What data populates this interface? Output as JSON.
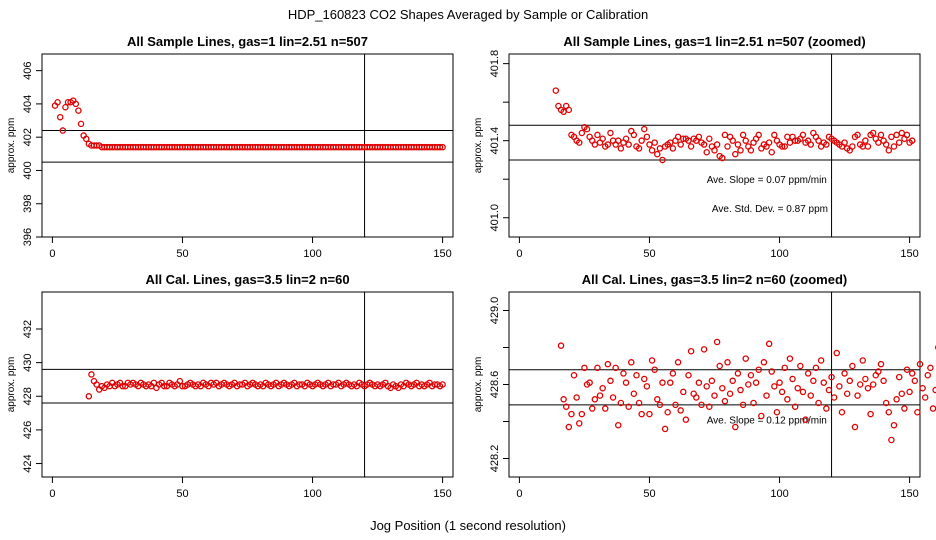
{
  "figure_title": "HDP_160823  CO2 Shapes Averaged by Sample or Calibration",
  "x_axis_label": "Jog Position (1 second resolution)",
  "point_color": "#e00000",
  "chart_data": [
    {
      "type": "scatter",
      "title": "All Sample Lines, gas=1 lin=2.51 n=507",
      "ylabel": "approx. ppm",
      "xlim": [
        -4,
        154
      ],
      "ylim": [
        396,
        407
      ],
      "xticks": [
        0,
        50,
        100,
        150
      ],
      "yticks": [
        396,
        398,
        400,
        402,
        404,
        406
      ],
      "hlines": [
        402.4,
        400.5
      ],
      "vlines": [
        120
      ],
      "annotations": [],
      "x_start": 1,
      "values": [
        403.9,
        404.1,
        403.2,
        402.4,
        403.8,
        404.1,
        404.1,
        404.2,
        404.0,
        403.6,
        402.8,
        402.1,
        401.9,
        401.6,
        401.5,
        401.5,
        401.5,
        401.5,
        401.4,
        401.4,
        401.4,
        401.4,
        401.4,
        401.4,
        401.4,
        401.4,
        401.4,
        401.4,
        401.4,
        401.4,
        401.4,
        401.4,
        401.4,
        401.4,
        401.4,
        401.4,
        401.4,
        401.4,
        401.4,
        401.4,
        401.4,
        401.4,
        401.4,
        401.4,
        401.4,
        401.4,
        401.4,
        401.4,
        401.4,
        401.4,
        401.4,
        401.4,
        401.4,
        401.4,
        401.4,
        401.4,
        401.4,
        401.4,
        401.4,
        401.4,
        401.4,
        401.4,
        401.4,
        401.4,
        401.4,
        401.4,
        401.4,
        401.4,
        401.4,
        401.4,
        401.4,
        401.4,
        401.4,
        401.4,
        401.4,
        401.4,
        401.4,
        401.4,
        401.4,
        401.4,
        401.4,
        401.4,
        401.4,
        401.4,
        401.4,
        401.4,
        401.4,
        401.4,
        401.4,
        401.4,
        401.4,
        401.4,
        401.4,
        401.4,
        401.4,
        401.4,
        401.4,
        401.4,
        401.4,
        401.4,
        401.4,
        401.4,
        401.4,
        401.4,
        401.4,
        401.4,
        401.4,
        401.4,
        401.4,
        401.4,
        401.4,
        401.4,
        401.4,
        401.4,
        401.4,
        401.4,
        401.4,
        401.4,
        401.4,
        401.4,
        401.4,
        401.4,
        401.4,
        401.4,
        401.4,
        401.4,
        401.4,
        401.4,
        401.4,
        401.4,
        401.4,
        401.4,
        401.4,
        401.4,
        401.4,
        401.4,
        401.4,
        401.4,
        401.4,
        401.4,
        401.4,
        401.4,
        401.4,
        401.4,
        401.4,
        401.4,
        401.4,
        401.4,
        401.4,
        401.4
      ]
    },
    {
      "type": "scatter",
      "title": "All Sample Lines, gas=1 lin=2.51 n=507 (zoomed)",
      "ylabel": "approx. ppm",
      "xlim": [
        -4,
        154
      ],
      "ylim": [
        400.9,
        401.85
      ],
      "xticks": [
        0,
        50,
        100,
        150
      ],
      "yticks": [
        401.0,
        401.2,
        401.4,
        401.6,
        401.8
      ],
      "ytick_labels": [
        "401.0",
        "",
        "401.4",
        "",
        "401.8"
      ],
      "hlines": [
        401.48,
        401.3
      ],
      "vlines": [
        120
      ],
      "annotations": [
        {
          "text": "Ave. Slope =  0.07  ppm/min",
          "x": 72,
          "y": 401.18
        },
        {
          "text": "Ave. Std. Dev. =  0.87  ppm",
          "x": 74,
          "y": 401.03
        }
      ],
      "x_start": 14,
      "values": [
        401.66,
        401.58,
        401.56,
        401.55,
        401.58,
        401.56,
        401.43,
        401.42,
        401.4,
        401.39,
        401.44,
        401.47,
        401.46,
        401.42,
        401.4,
        401.38,
        401.43,
        401.39,
        401.41,
        401.37,
        401.38,
        401.44,
        401.4,
        401.38,
        401.4,
        401.36,
        401.39,
        401.41,
        401.38,
        401.45,
        401.43,
        401.37,
        401.36,
        401.4,
        401.46,
        401.42,
        401.38,
        401.35,
        401.39,
        401.33,
        401.36,
        401.3,
        401.37,
        401.38,
        401.39,
        401.36,
        401.4,
        401.42,
        401.38,
        401.41,
        401.41,
        401.4,
        401.37,
        401.41,
        401.4,
        401.42,
        401.39,
        401.38,
        401.34,
        401.41,
        401.37,
        401.35,
        401.38,
        401.32,
        401.31,
        401.43,
        401.37,
        401.42,
        401.4,
        401.33,
        401.38,
        401.35,
        401.43,
        401.4,
        401.37,
        401.35,
        401.39,
        401.41,
        401.43,
        401.36,
        401.38,
        401.37,
        401.39,
        401.34,
        401.43,
        401.4,
        401.38,
        401.37,
        401.37,
        401.42,
        401.39,
        401.42,
        401.4,
        401.4,
        401.41,
        401.43,
        401.39,
        401.4,
        401.38,
        401.44,
        401.42,
        401.4,
        401.37,
        401.39,
        401.38,
        401.42,
        401.41,
        401.4,
        401.39,
        401.38,
        401.37,
        401.39,
        401.36,
        401.35,
        401.37,
        401.42,
        401.43,
        401.38,
        401.37,
        401.4,
        401.37,
        401.43,
        401.44,
        401.41,
        401.39,
        401.43,
        401.4,
        401.38,
        401.35,
        401.42,
        401.37,
        401.43,
        401.39,
        401.44,
        401.41,
        401.43,
        401.39,
        401.4
      ]
    },
    {
      "type": "scatter",
      "title": "All Cal. Lines, gas=3.5 lin=2 n=60",
      "ylabel": "approx. ppm",
      "xlim": [
        -4,
        154
      ],
      "ylim": [
        423.2,
        434.2
      ],
      "xticks": [
        0,
        50,
        100,
        150
      ],
      "yticks": [
        424,
        426,
        428,
        430,
        432
      ],
      "hlines": [
        429.6,
        427.6
      ],
      "vlines": [
        120
      ],
      "annotations": [],
      "x_start": 14,
      "values": [
        428.0,
        429.3,
        428.9,
        428.7,
        428.4,
        428.6,
        428.5,
        428.7,
        428.6,
        428.8,
        428.6,
        428.7,
        428.8,
        428.6,
        428.6,
        428.8,
        428.7,
        428.8,
        428.7,
        428.6,
        428.8,
        428.7,
        428.6,
        428.7,
        428.6,
        428.8,
        428.5,
        428.7,
        428.8,
        428.6,
        428.6,
        428.8,
        428.7,
        428.6,
        428.7,
        428.9,
        428.6,
        428.6,
        428.7,
        428.8,
        428.7,
        428.6,
        428.7,
        428.6,
        428.8,
        428.7,
        428.6,
        428.8,
        428.7,
        428.8,
        428.6,
        428.7,
        428.8,
        428.7,
        428.6,
        428.7,
        428.8,
        428.6,
        428.7,
        428.7,
        428.8,
        428.6,
        428.7,
        428.8,
        428.7,
        428.6,
        428.7,
        428.6,
        428.8,
        428.7,
        428.6,
        428.7,
        428.8,
        428.6,
        428.7,
        428.8,
        428.7,
        428.6,
        428.7,
        428.8,
        428.6,
        428.7,
        428.7,
        428.6,
        428.8,
        428.7,
        428.6,
        428.7,
        428.8,
        428.7,
        428.6,
        428.7,
        428.8,
        428.6,
        428.7,
        428.7,
        428.8,
        428.6,
        428.7,
        428.8,
        428.7,
        428.6,
        428.7,
        428.6,
        428.8,
        428.7,
        428.6,
        428.7,
        428.8,
        428.7,
        428.6,
        428.7,
        428.6,
        428.7,
        428.8,
        428.6,
        428.5,
        428.7,
        428.6,
        428.5,
        428.7,
        428.6,
        428.8,
        428.7,
        428.6,
        428.7,
        428.8,
        428.6,
        428.7,
        428.6,
        428.7,
        428.8,
        428.6,
        428.7,
        428.7,
        428.6,
        428.7
      ]
    },
    {
      "type": "scatter",
      "title": "All Cal. Lines, gas=3.5 lin=2 n=60 (zoomed)",
      "ylabel": "approx. ppm",
      "xlim": [
        -4,
        154
      ],
      "ylim": [
        428.1,
        429.1
      ],
      "xticks": [
        0,
        50,
        100,
        150
      ],
      "yticks": [
        428.2,
        428.4,
        428.6,
        428.8,
        429.0
      ],
      "ytick_labels": [
        "428.2",
        "",
        "428.6",
        "",
        "429.0"
      ],
      "hlines": [
        428.68,
        428.49
      ],
      "vlines": [
        120
      ],
      "annotations": [
        {
          "text": "Ave. Slope =  0.12  ppm/min",
          "x": 72,
          "y": 428.39
        }
      ],
      "x_start": 16,
      "values": [
        428.81,
        428.52,
        428.48,
        428.37,
        428.44,
        428.65,
        428.53,
        428.39,
        428.44,
        428.69,
        428.6,
        428.61,
        428.47,
        428.52,
        428.69,
        428.54,
        428.58,
        428.47,
        428.71,
        428.62,
        428.53,
        428.69,
        428.38,
        428.5,
        428.66,
        428.61,
        428.48,
        428.72,
        428.55,
        428.65,
        428.5,
        428.44,
        428.63,
        428.59,
        428.44,
        428.73,
        428.68,
        428.52,
        428.49,
        428.61,
        428.36,
        428.45,
        428.61,
        428.66,
        428.49,
        428.72,
        428.46,
        428.56,
        428.41,
        428.65,
        428.78,
        428.55,
        428.53,
        428.61,
        428.49,
        428.79,
        428.59,
        428.48,
        428.62,
        428.54,
        428.83,
        428.7,
        428.58,
        428.51,
        428.72,
        428.55,
        428.62,
        428.37,
        428.66,
        428.57,
        428.49,
        428.74,
        428.6,
        428.65,
        428.5,
        428.61,
        428.68,
        428.43,
        428.72,
        428.54,
        428.82,
        428.67,
        428.59,
        428.45,
        428.61,
        428.56,
        428.69,
        428.52,
        428.74,
        428.63,
        428.48,
        428.58,
        428.7,
        428.56,
        428.41,
        428.66,
        428.54,
        428.62,
        428.69,
        428.5,
        428.73,
        428.61,
        428.47,
        428.57,
        428.64,
        428.53,
        428.77,
        428.59,
        428.45,
        428.66,
        428.55,
        428.62,
        428.7,
        428.37,
        428.54,
        428.6,
        428.73,
        428.63,
        428.58,
        428.44,
        428.6,
        428.65,
        428.67,
        428.71,
        428.62,
        428.5,
        428.45,
        428.3,
        428.38,
        428.52,
        428.64,
        428.55,
        428.47,
        428.68,
        428.56,
        428.66,
        428.62,
        428.45,
        428.71,
        428.58,
        428.53,
        428.65,
        428.69,
        428.47,
        428.57,
        428.8,
        428.65,
        428.61,
        428.55,
        428.62
      ]
    }
  ]
}
